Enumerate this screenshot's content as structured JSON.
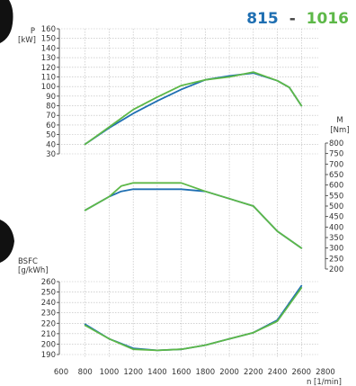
{
  "title": {
    "model_a": "815",
    "separator": "-",
    "model_b": "1016",
    "color_a": "#1f6fb2",
    "color_b": "#5db848"
  },
  "chart_data": {
    "type": "line",
    "x_axis": {
      "label": "n [1/min]",
      "range": [
        600,
        2800
      ],
      "ticks": [
        600,
        800,
        1000,
        1200,
        1400,
        1600,
        1800,
        2000,
        2200,
        2400,
        2600,
        2800
      ]
    },
    "power": {
      "label_line1": "P",
      "label_line2": "[kW]",
      "range": [
        30,
        160
      ],
      "ticks": [
        30,
        40,
        50,
        60,
        70,
        80,
        90,
        100,
        110,
        120,
        130,
        140,
        150,
        160
      ],
      "series": [
        {
          "name": "815",
          "color": "#1f6fb2",
          "x": [
            800,
            1000,
            1200,
            1400,
            1600,
            1800,
            2000,
            2200,
            2400,
            2500,
            2600
          ],
          "values": [
            40,
            57,
            72,
            85,
            97,
            107,
            111,
            114,
            106,
            99,
            80
          ]
        },
        {
          "name": "1016",
          "color": "#5db848",
          "x": [
            800,
            1000,
            1200,
            1400,
            1600,
            1800,
            2000,
            2200,
            2400,
            2500,
            2600
          ],
          "values": [
            40,
            58,
            76,
            89,
            101,
            107,
            110,
            115,
            106,
            99,
            80
          ]
        }
      ]
    },
    "torque": {
      "label_line1": "M",
      "label_line2": "[Nm]",
      "range": [
        200,
        800
      ],
      "ticks": [
        200,
        250,
        300,
        350,
        400,
        450,
        500,
        550,
        600,
        650,
        700,
        750,
        800
      ],
      "series": [
        {
          "name": "815",
          "color": "#1f6fb2",
          "x": [
            800,
            1000,
            1100,
            1200,
            1400,
            1600,
            1800,
            2000,
            2200,
            2400,
            2600
          ],
          "values": [
            480,
            545,
            570,
            580,
            580,
            580,
            570,
            535,
            500,
            380,
            300
          ]
        },
        {
          "name": "1016",
          "color": "#5db848",
          "x": [
            800,
            1000,
            1100,
            1200,
            1400,
            1600,
            1800,
            2000,
            2200,
            2400,
            2600
          ],
          "values": [
            480,
            545,
            595,
            610,
            610,
            610,
            570,
            535,
            500,
            380,
            300
          ]
        }
      ]
    },
    "bsfc": {
      "label_line1": "BSFC",
      "label_line2": "[g/kWh]",
      "range": [
        190,
        260
      ],
      "ticks": [
        190,
        200,
        210,
        220,
        230,
        240,
        250,
        260
      ],
      "series": [
        {
          "name": "815",
          "color": "#1f6fb2",
          "x": [
            800,
            1000,
            1200,
            1400,
            1600,
            1800,
            2000,
            2200,
            2400,
            2600
          ],
          "values": [
            219,
            205,
            196,
            194,
            195,
            199,
            205,
            211,
            223,
            256
          ]
        },
        {
          "name": "1016",
          "color": "#5db848",
          "x": [
            800,
            1000,
            1200,
            1400,
            1600,
            1800,
            2000,
            2200,
            2400,
            2600
          ],
          "values": [
            218,
            205,
            195,
            194,
            195,
            199,
            205,
            211,
            222,
            254
          ]
        }
      ]
    }
  }
}
